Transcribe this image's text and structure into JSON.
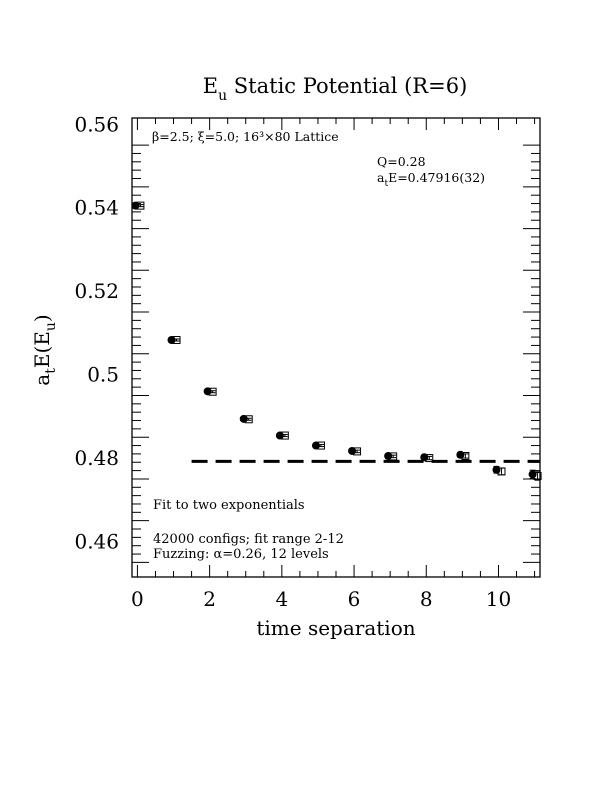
{
  "chart_data": {
    "type": "scatter",
    "title": "E_u Static Potential (R=6)",
    "title_main": "E",
    "title_sub": "u",
    "title_rest": " Static Potential (R=6)",
    "xlabel": "time separation",
    "ylabel": "a_tE(E_u)",
    "ylabel_a": "a",
    "ylabel_t": "t",
    "ylabel_mid": "E(E",
    "ylabel_u": "u",
    "ylabel_end": ")",
    "xlim": [
      -0.15,
      11.15
    ],
    "ylim": [
      0.4515,
      0.5615
    ],
    "x_ticks": [
      0,
      2,
      4,
      6,
      8,
      10
    ],
    "x_tick_labels": [
      "0",
      "2",
      "4",
      "6",
      "8",
      "10"
    ],
    "y_ticks": [
      0.46,
      0.48,
      0.5,
      0.52,
      0.54,
      0.56
    ],
    "y_tick_labels": [
      "0.46",
      "0.48",
      "0.5",
      "0.52",
      "0.54",
      "0.56"
    ],
    "series": [
      {
        "marker": "filled-circle",
        "x": [
          0,
          1,
          2,
          3,
          4,
          5,
          6,
          7,
          8,
          9,
          10,
          11
        ],
        "values": [
          0.5405,
          0.5083,
          0.496,
          0.4894,
          0.4854,
          0.483,
          0.4817,
          0.4805,
          0.4802,
          0.4808,
          0.4772,
          0.4761
        ],
        "errors": [
          0.0002,
          0.0002,
          0.0002,
          0.0002,
          0.0002,
          0.0002,
          0.0003,
          0.0003,
          0.0004,
          0.0005,
          0.0008,
          0.001
        ]
      },
      {
        "marker": "open-square",
        "x": [
          0,
          1,
          2,
          3,
          4,
          5,
          6,
          7,
          8,
          9,
          10,
          11
        ],
        "values": [
          0.5405,
          0.5083,
          0.4959,
          0.4893,
          0.4854,
          0.483,
          0.4816,
          0.4804,
          0.48,
          0.4805,
          0.4768,
          0.4757
        ],
        "errors": [
          0.0002,
          0.0002,
          0.0002,
          0.0002,
          0.0002,
          0.0002,
          0.0003,
          0.0003,
          0.0004,
          0.0005,
          0.0008,
          0.001
        ]
      }
    ],
    "fit_line": {
      "x_start": 1.5,
      "x_end": 11.15,
      "value": 0.4792,
      "style": "dashed"
    },
    "annotations": {
      "lattice": "β=2.5; ξ=5.0; 16³×80 Lattice",
      "q": "Q=0.28",
      "energy_prefix": "a",
      "energy_sub": "t",
      "energy_rest": "E=0.47916(32)",
      "fit": "Fit to two exponentials",
      "configs": "42000 configs; fit range 2-12",
      "fuzzing": "Fuzzing: α=0.26, 12 levels"
    },
    "grid": false
  }
}
